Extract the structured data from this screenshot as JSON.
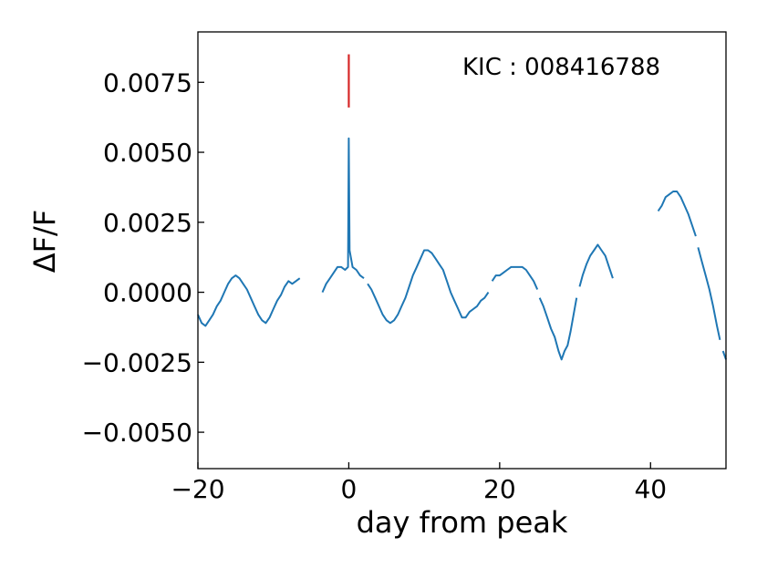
{
  "chart_data": {
    "type": "line",
    "xlabel": "day from peak",
    "ylabel": "ΔF/F",
    "xlim": [
      -20,
      50
    ],
    "ylim": [
      -0.0063,
      0.0093
    ],
    "xticks": [
      -20,
      0,
      20,
      40
    ],
    "xtick_labels": [
      "−20",
      "0",
      "20",
      "40"
    ],
    "yticks": [
      0.0075,
      0.005,
      0.0025,
      0.0,
      -0.0025,
      -0.005
    ],
    "ytick_labels": [
      "0.0075",
      "0.0050",
      "0.0025",
      "0.0000",
      "−0.0025",
      "−0.0050"
    ],
    "annotation": "KIC : 008416788",
    "series_color": "#1f77b4",
    "marker_color": "#d62728",
    "peak_marker": {
      "x": 0,
      "y_range": [
        0.0066,
        0.0085
      ]
    },
    "segments": [
      [
        [
          -20,
          -0.0008
        ],
        [
          -19.5,
          -0.0011
        ],
        [
          -19,
          -0.0012
        ],
        [
          -18.5,
          -0.001
        ],
        [
          -18,
          -0.0008
        ],
        [
          -17.5,
          -0.0005
        ],
        [
          -17,
          -0.0003
        ],
        [
          -16.5,
          0.0
        ],
        [
          -16,
          0.0003
        ],
        [
          -15.5,
          0.0005
        ],
        [
          -15,
          0.0006
        ],
        [
          -14.5,
          0.0005
        ],
        [
          -14,
          0.0003
        ],
        [
          -13.5,
          0.0001
        ],
        [
          -13,
          -0.0002
        ],
        [
          -12.5,
          -0.0005
        ],
        [
          -12,
          -0.0008
        ],
        [
          -11.5,
          -0.001
        ],
        [
          -11,
          -0.0011
        ],
        [
          -10.5,
          -0.0009
        ],
        [
          -10,
          -0.0006
        ],
        [
          -9.5,
          -0.0003
        ],
        [
          -9,
          -0.0001
        ],
        [
          -8.5,
          0.0002
        ],
        [
          -8,
          0.0004
        ],
        [
          -7.5,
          0.0003
        ],
        [
          -7,
          0.0004
        ],
        [
          -6.5,
          0.0005
        ]
      ],
      [
        [
          -3.5,
          0.0
        ],
        [
          -3,
          0.0003
        ],
        [
          -2.5,
          0.0005
        ],
        [
          -2,
          0.0007
        ],
        [
          -1.5,
          0.0009
        ],
        [
          -1,
          0.0009
        ],
        [
          -0.5,
          0.0008
        ],
        [
          -0.1,
          0.0009
        ],
        [
          0,
          0.0055
        ],
        [
          0.1,
          0.0015
        ],
        [
          0.5,
          0.0009
        ],
        [
          1,
          0.0008
        ],
        [
          1.5,
          0.0006
        ],
        [
          2,
          0.0005
        ]
      ],
      [
        [
          2.5,
          0.0003
        ],
        [
          3,
          0.0001
        ],
        [
          3.5,
          -0.0002
        ],
        [
          4,
          -0.0005
        ],
        [
          4.5,
          -0.0008
        ],
        [
          5,
          -0.001
        ],
        [
          5.5,
          -0.0011
        ],
        [
          6,
          -0.001
        ],
        [
          6.5,
          -0.0008
        ],
        [
          7,
          -0.0005
        ],
        [
          7.5,
          -0.0002
        ],
        [
          8,
          0.0002
        ],
        [
          8.5,
          0.0006
        ],
        [
          9,
          0.0009
        ],
        [
          9.5,
          0.0012
        ],
        [
          10,
          0.0015
        ],
        [
          10.5,
          0.0015
        ],
        [
          11,
          0.0014
        ],
        [
          11.5,
          0.0012
        ],
        [
          12,
          0.001
        ],
        [
          12.5,
          0.0008
        ],
        [
          13,
          0.0004
        ],
        [
          13.5,
          0.0
        ],
        [
          14,
          -0.0003
        ],
        [
          14.5,
          -0.0006
        ],
        [
          15,
          -0.0009
        ],
        [
          15.5,
          -0.0009
        ],
        [
          16,
          -0.0007
        ],
        [
          16.5,
          -0.0006
        ],
        [
          17,
          -0.0005
        ],
        [
          17.5,
          -0.0003
        ],
        [
          18,
          -0.0002
        ],
        [
          18.5,
          0.0
        ]
      ],
      [
        [
          19,
          0.0004
        ],
        [
          19.5,
          0.0006
        ],
        [
          20,
          0.0006
        ],
        [
          20.5,
          0.0007
        ],
        [
          21,
          0.0008
        ],
        [
          21.5,
          0.0009
        ],
        [
          22,
          0.0009
        ],
        [
          22.5,
          0.0009
        ],
        [
          23,
          0.0009
        ],
        [
          23.5,
          0.0008
        ],
        [
          24,
          0.0006
        ],
        [
          24.5,
          0.0004
        ],
        [
          25,
          0.0001
        ]
      ],
      [
        [
          25.3,
          -0.0002
        ],
        [
          25.8,
          -0.0005
        ],
        [
          26.3,
          -0.0009
        ],
        [
          26.8,
          -0.0013
        ],
        [
          27.3,
          -0.0016
        ],
        [
          27.8,
          -0.0021
        ],
        [
          28.2,
          -0.0024
        ],
        [
          28.6,
          -0.0021
        ],
        [
          29,
          -0.0019
        ],
        [
          29.4,
          -0.0014
        ],
        [
          29.8,
          -0.0008
        ],
        [
          30.2,
          -0.0002
        ]
      ],
      [
        [
          30.6,
          0.0002
        ],
        [
          31,
          0.0006
        ],
        [
          31.5,
          0.001
        ],
        [
          32,
          0.0013
        ],
        [
          32.5,
          0.0015
        ],
        [
          33,
          0.0017
        ],
        [
          33.5,
          0.0015
        ],
        [
          34,
          0.0013
        ],
        [
          34.5,
          0.0009
        ],
        [
          35,
          0.0005
        ]
      ],
      [
        [
          41,
          0.0029
        ],
        [
          41.5,
          0.0031
        ],
        [
          42,
          0.0034
        ],
        [
          42.5,
          0.0035
        ],
        [
          43,
          0.0036
        ],
        [
          43.5,
          0.0036
        ],
        [
          44,
          0.0034
        ],
        [
          44.5,
          0.0031
        ],
        [
          45,
          0.0028
        ],
        [
          45.5,
          0.0024
        ],
        [
          46,
          0.002
        ]
      ],
      [
        [
          46.3,
          0.0016
        ],
        [
          46.8,
          0.0011
        ],
        [
          47.3,
          0.0006
        ],
        [
          47.8,
          0.0001
        ],
        [
          48.3,
          -0.0005
        ],
        [
          48.8,
          -0.0012
        ],
        [
          49.2,
          -0.0017
        ]
      ],
      [
        [
          49.6,
          -0.0021
        ],
        [
          50,
          -0.0024
        ]
      ]
    ]
  }
}
